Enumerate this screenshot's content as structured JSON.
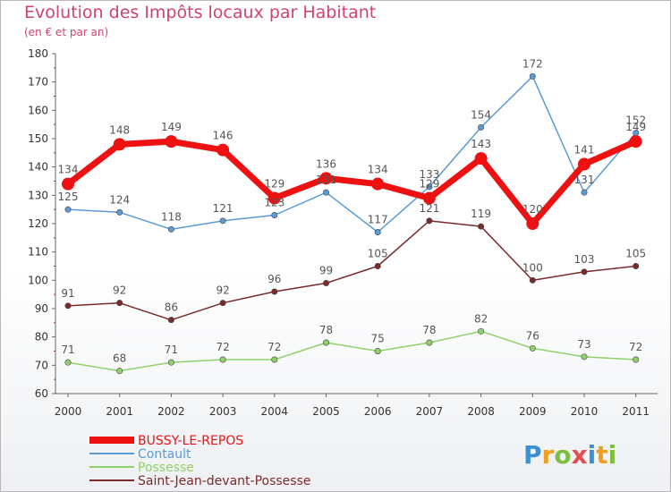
{
  "header": {
    "title": "Evolution des Impôts locaux par Habitant",
    "subtitle": "(en € et par an)"
  },
  "logo": {
    "text": "Proxiti",
    "colors": [
      "#3b8fd4",
      "#f0a020",
      "#7fbf3f",
      "#e05050",
      "#3b8fd4",
      "#f0a020",
      "#7fbf3f"
    ]
  },
  "chart_data": {
    "type": "line",
    "x": [
      "2000",
      "2001",
      "2002",
      "2003",
      "2004",
      "2005",
      "2006",
      "2007",
      "2008",
      "2009",
      "2010",
      "2011"
    ],
    "ylim": [
      60,
      180
    ],
    "yticks": [
      60,
      70,
      80,
      90,
      100,
      110,
      120,
      130,
      140,
      150,
      160,
      170,
      180
    ],
    "grid": false,
    "legend_position": "bottom-left",
    "series": [
      {
        "name": "BUSSY-LE-REPOS",
        "color": "#ee1111",
        "values": [
          134,
          148,
          149,
          146,
          129,
          136,
          134,
          129,
          143,
          120,
          141,
          149
        ]
      },
      {
        "name": "Contault",
        "color": "#5b9bd5",
        "values": [
          125,
          124,
          118,
          121,
          123,
          131,
          117,
          133,
          154,
          172,
          131,
          152
        ]
      },
      {
        "name": "Possesse",
        "color": "#8fd16a",
        "values": [
          71,
          68,
          71,
          72,
          72,
          78,
          75,
          78,
          82,
          76,
          73,
          72
        ]
      },
      {
        "name": "Saint-Jean-devant-Possesse",
        "color": "#7a2a2a",
        "values": [
          91,
          92,
          86,
          92,
          96,
          99,
          105,
          121,
          119,
          100,
          103,
          105
        ]
      }
    ]
  }
}
